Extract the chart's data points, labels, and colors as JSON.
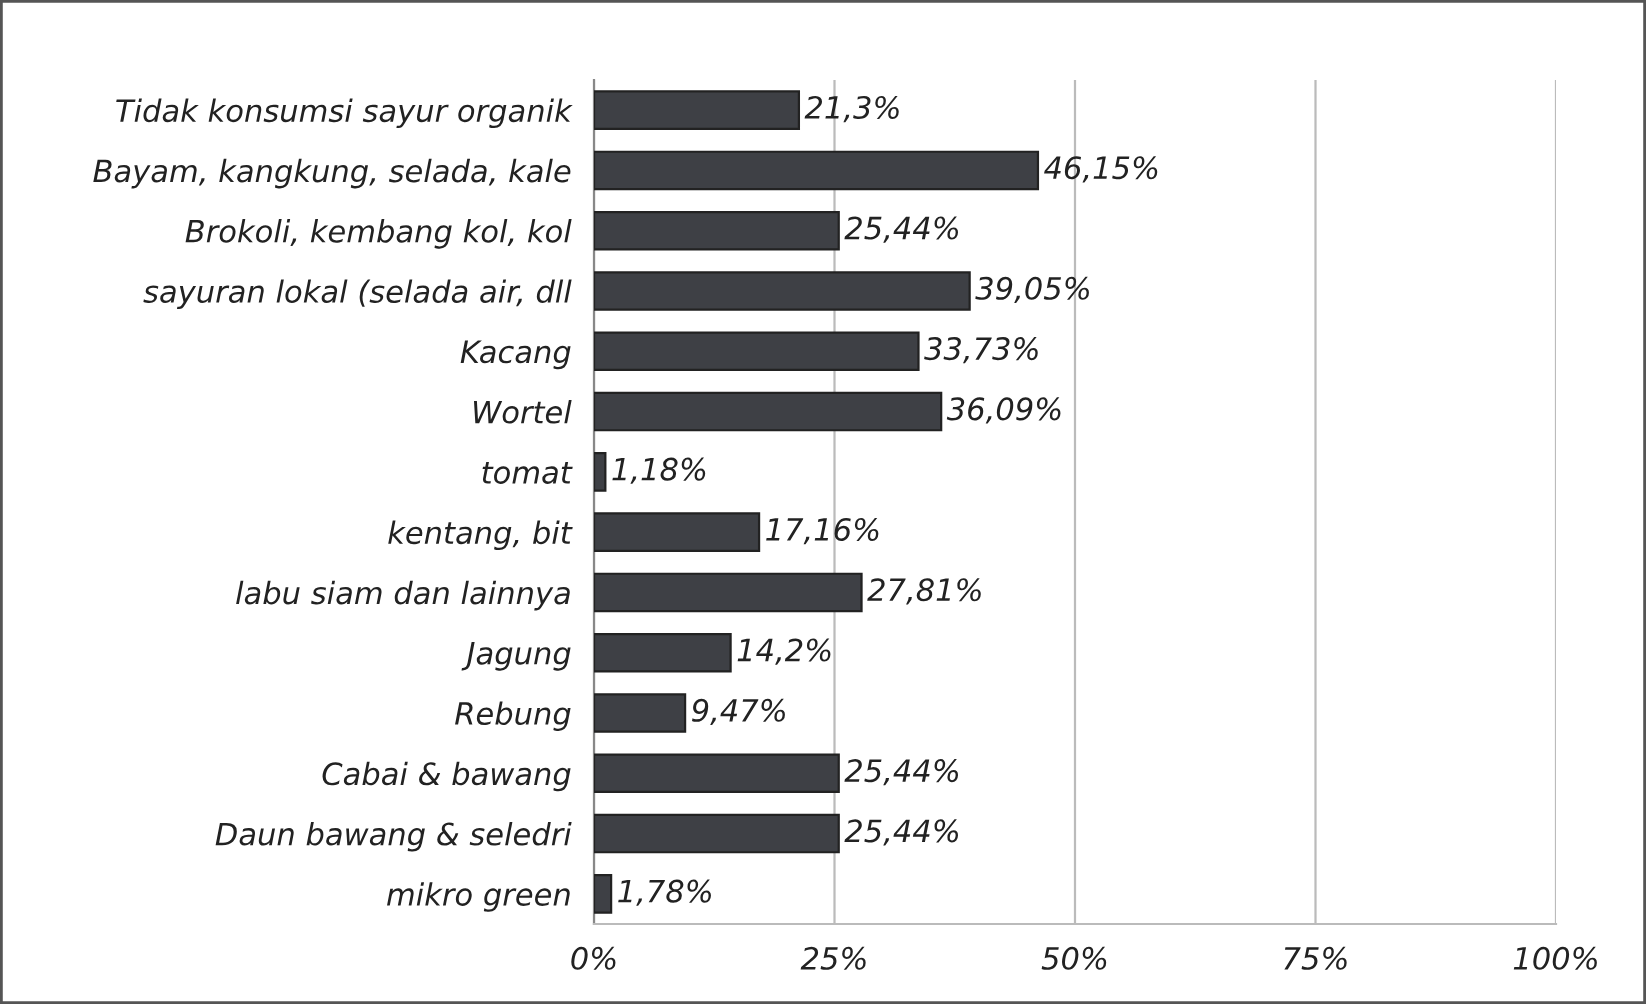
{
  "chart_data": {
    "type": "bar",
    "orientation": "horizontal",
    "categories": [
      "Tidak konsumsi sayur organik",
      "Bayam, kangkung, selada, kale",
      "Brokoli, kembang kol, kol",
      "sayuran lokal (selada air, dll",
      "Kacang",
      "Wortel",
      "tomat",
      "kentang, bit",
      "labu siam dan lainnya",
      "Jagung",
      "Rebung",
      "Cabai & bawang",
      "Daun bawang & seledri",
      "mikro green"
    ],
    "values": [
      21.3,
      46.15,
      25.44,
      39.05,
      33.73,
      36.09,
      1.18,
      17.16,
      27.81,
      14.2,
      9.47,
      25.44,
      25.44,
      1.78
    ],
    "value_labels": [
      "21,3%",
      "46,15%",
      "25,44%",
      "39,05%",
      "33,73%",
      "36,09%",
      "1,18%",
      "17,16%",
      "27,81%",
      "14,2%",
      "9,47%",
      "25,44%",
      "25,44%",
      "1,78%"
    ],
    "color": "#3e4045",
    "xlim": [
      0,
      100
    ],
    "xticks": [
      {
        "value": 0,
        "label": "0%"
      },
      {
        "value": 25,
        "label": "25%"
      },
      {
        "value": 50,
        "label": "50%"
      },
      {
        "value": 75,
        "label": "75%"
      },
      {
        "value": 100,
        "label": "100%"
      }
    ],
    "grid": "x"
  }
}
